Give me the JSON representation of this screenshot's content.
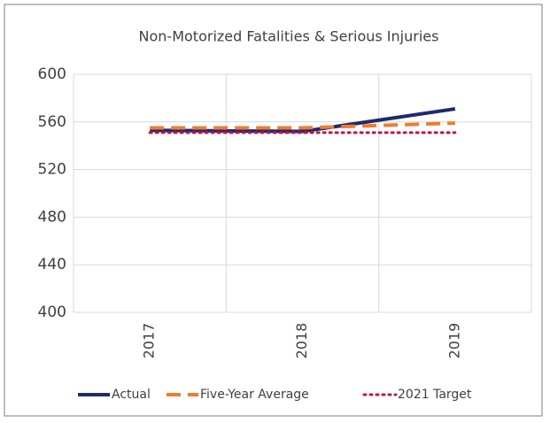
{
  "chart_data": {
    "type": "line",
    "title": "Non-Motorized Fatalities & Serious Injuries",
    "categories": [
      "2017",
      "2018",
      "2019"
    ],
    "series": [
      {
        "name": "Actual",
        "color": "#1f2a6b",
        "style": "solid",
        "values": [
          553,
          552,
          571
        ]
      },
      {
        "name": "Five-Year Average",
        "color": "#ed7d31",
        "style": "dashed",
        "values": [
          555,
          555,
          559
        ]
      },
      {
        "name": "2021 Target",
        "color": "#c0144c",
        "style": "dotted",
        "values": [
          551,
          551,
          551
        ]
      }
    ],
    "ylim": [
      400,
      600
    ],
    "yticks": [
      400,
      440,
      480,
      520,
      560,
      600
    ],
    "grid": true,
    "legend": "bottom"
  }
}
